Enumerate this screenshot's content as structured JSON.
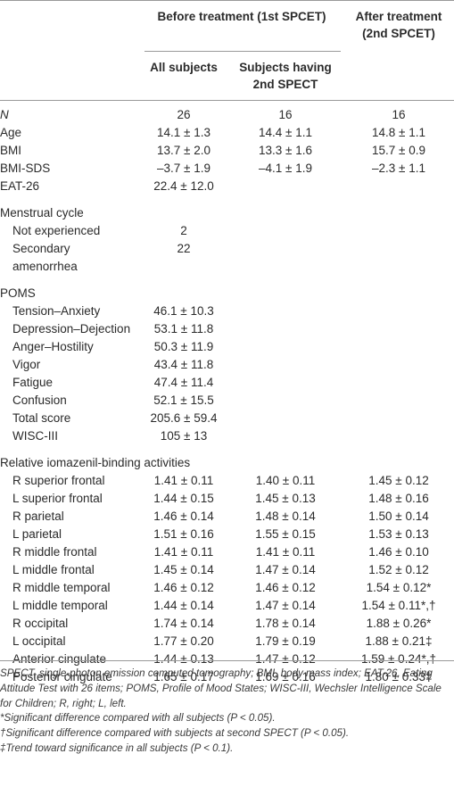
{
  "header": {
    "before": "Before treatment (1st SPCET)",
    "after_line1": "After treatment",
    "after_line2": "(2nd SPCET)",
    "all_subjects": "All subjects",
    "subjects_line1": "Subjects having",
    "subjects_line2": "2nd SPECT"
  },
  "rows": {
    "n": {
      "label": "N",
      "all": "26",
      "sub": "16",
      "after": "16"
    },
    "age": {
      "label": "Age",
      "all": "14.1 ± 1.3",
      "sub": "14.4 ± 1.1",
      "after": "14.8 ± 1.1"
    },
    "bmi": {
      "label": "BMI",
      "all": "13.7 ± 2.0",
      "sub": "13.3 ± 1.6",
      "after": "15.7 ± 0.9"
    },
    "bmisds": {
      "label": "BMI-SDS",
      "all": "–3.7 ± 1.9",
      "sub": "–4.1 ± 1.9",
      "after": "–2.3 ± 1.1"
    },
    "eat": {
      "label": "EAT-26",
      "all": "22.4 ± 12.0"
    },
    "menstrual": {
      "label": "Menstrual cycle"
    },
    "notexp": {
      "label": "Not experienced",
      "all": "2"
    },
    "secondary": {
      "label": "Secondary amenorrhea",
      "all": "22"
    },
    "poms": {
      "label": "POMS"
    },
    "tension": {
      "label": "Tension–Anxiety",
      "all": "46.1 ± 10.3"
    },
    "depression": {
      "label": "Depression–Dejection",
      "all": "53.1 ± 11.8"
    },
    "anger": {
      "label": "Anger–Hostility",
      "all": "50.3 ± 11.9"
    },
    "vigor": {
      "label": "Vigor",
      "all": "43.4 ± 11.8"
    },
    "fatigue": {
      "label": "Fatigue",
      "all": "47.4 ± 11.4"
    },
    "confusion": {
      "label": "Confusion",
      "all": "52.1 ± 15.5"
    },
    "total": {
      "label": "Total score",
      "all": "205.6 ± 59.4"
    },
    "wisc": {
      "label": "WISC-III",
      "all": "105 ± 13"
    },
    "relative": {
      "label": "Relative iomazenil-binding activities"
    },
    "rsf": {
      "label": "R superior frontal",
      "all": "1.41 ± 0.11",
      "sub": "1.40 ± 0.11",
      "after": "1.45 ± 0.12"
    },
    "lsf": {
      "label": "L superior frontal",
      "all": "1.44 ± 0.15",
      "sub": "1.45 ± 0.13",
      "after": "1.48 ± 0.16"
    },
    "rp": {
      "label": "R parietal",
      "all": "1.46 ± 0.14",
      "sub": "1.48 ± 0.14",
      "after": "1.50 ± 0.14"
    },
    "lp": {
      "label": "L parietal",
      "all": "1.51 ± 0.16",
      "sub": "1.55 ± 0.15",
      "after": "1.53 ± 0.13"
    },
    "rmf": {
      "label": "R middle frontal",
      "all": "1.41 ± 0.11",
      "sub": "1.41 ± 0.11",
      "after": "1.46 ± 0.10"
    },
    "lmf": {
      "label": "L middle frontal",
      "all": "1.45 ± 0.14",
      "sub": "1.47 ± 0.14",
      "after": "1.52 ± 0.12"
    },
    "rmt": {
      "label": "R middle temporal",
      "all": "1.46 ± 0.12",
      "sub": "1.46 ± 0.12",
      "after": "1.54 ± 0.12*"
    },
    "lmt": {
      "label": "L middle temporal",
      "all": "1.44 ± 0.14",
      "sub": "1.47 ± 0.14",
      "after": "1.54 ± 0.11*,†"
    },
    "ro": {
      "label": "R occipital",
      "all": "1.74 ± 0.14",
      "sub": "1.78 ± 0.14",
      "after": "1.88 ± 0.26*"
    },
    "lo": {
      "label": "L occipital",
      "all": "1.77 ± 0.20",
      "sub": "1.79 ± 0.19",
      "after": "1.88 ± 0.21‡"
    },
    "ac": {
      "label": "Anterior cingulate",
      "all": "1.44 ± 0.13",
      "sub": "1.47 ± 0.12",
      "after": "1.59 ± 0.24*,†"
    },
    "pc": {
      "label": "Posterior cingulate",
      "all": "1.65 ± 0.17",
      "sub": "1.69 ± 0.16",
      "after": "1.80 ± 0.33‡"
    }
  },
  "footnotes": {
    "abbr": "SPECT, single-photon emission computed tomography; BMI, body mass index; EAT-26, Eating Attitude Test with 26 items; POMS, Profile of Mood States; WISC-III, Wechsler Intelligence Scale for Children; R, right; L, left.",
    "star": "*Significant difference compared with all subjects (P < 0.05).",
    "dagger": "†Significant difference compared with subjects at second SPECT (P < 0.05).",
    "ddagger": "‡Trend toward significance in all subjects (P < 0.1)."
  }
}
